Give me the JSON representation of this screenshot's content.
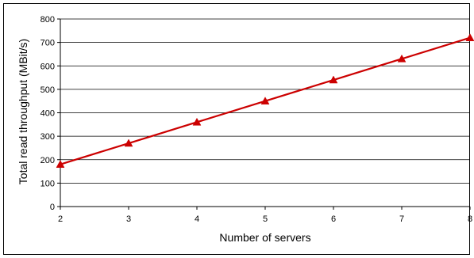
{
  "chart_data": {
    "type": "line",
    "title": "",
    "xlabel": "Number of servers",
    "ylabel": "Total read throughput (MBit/s)",
    "x": [
      2,
      3,
      4,
      5,
      6,
      7,
      8
    ],
    "xlim": [
      2,
      8
    ],
    "ylim": [
      0,
      800
    ],
    "x_ticks": [
      "2",
      "3",
      "4",
      "5",
      "6",
      "7",
      "8"
    ],
    "y_ticks": [
      "0",
      "100",
      "200",
      "300",
      "400",
      "500",
      "600",
      "700",
      "800"
    ],
    "series": [
      {
        "values": [
          180,
          270,
          360,
          450,
          540,
          630,
          720
        ],
        "color": "#cc0000",
        "marker": "triangle"
      }
    ],
    "grid": "horizontal",
    "legend": "none"
  }
}
